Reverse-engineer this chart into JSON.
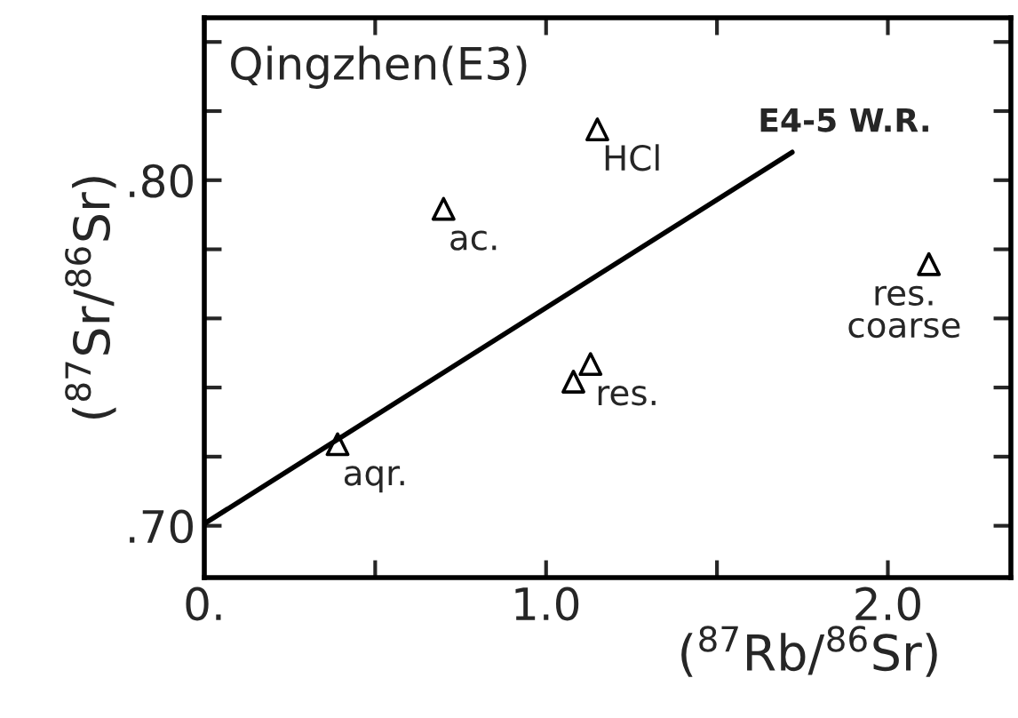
{
  "chart_data": {
    "type": "scatter",
    "title": "Qingzhen(E3)",
    "xlabel": "($^{87}$Rb/$^{86}$Sr)",
    "ylabel": "($^{87}$Sr/$^{86}$Sr)",
    "series": [
      {
        "color": "#000000",
        "marker": "triangle",
        "x": [
          0.39,
          0.7,
          1.15,
          1.08,
          1.13,
          2.12
        ],
        "values": [
          0.7236,
          0.7917,
          0.8147,
          0.7417,
          0.7468,
          0.7757
        ]
      },
      {
        "type": "line",
        "name": "E4-5 W.R.",
        "color": "#000000",
        "marker": "none",
        "line_style": "solid",
        "x": [
          0.0,
          1.72
        ],
        "values": [
          0.7006,
          0.8081
        ]
      }
    ],
    "annotations": [
      {
        "text": "aqr.",
        "x": 0.39,
        "y": 0.7236
      },
      {
        "text": "ac.",
        "x": 0.7,
        "y": 0.7917
      },
      {
        "text": "HCl",
        "x": 1.15,
        "y": 0.8147
      },
      {
        "text": "res.",
        "x": 1.13,
        "y": 0.7468
      },
      {
        "text": "res.\ncoarse",
        "x": 2.12,
        "y": 0.7757
      }
    ],
    "xlim": [
      0.0,
      2.36
    ],
    "ylim": [
      0.685,
      0.847
    ],
    "xticks": [
      {
        "value": 0,
        "label": "0."
      },
      {
        "value": 0.5,
        "label": null
      },
      {
        "value": 1.0,
        "label": "1.0"
      },
      {
        "value": 1.5,
        "label": null
      },
      {
        "value": 2.0,
        "label": "2.0"
      }
    ],
    "yticks": [
      {
        "value": 0.7,
        "label": ".70"
      },
      {
        "value": 0.72,
        "label": null
      },
      {
        "value": 0.74,
        "label": null
      },
      {
        "value": 0.76,
        "label": null
      },
      {
        "value": 0.78,
        "label": null
      },
      {
        "value": 0.8,
        "label": ".80"
      },
      {
        "value": 0.82,
        "label": null
      },
      {
        "value": 0.84,
        "label": null
      }
    ],
    "grid": false,
    "legend": false
  }
}
